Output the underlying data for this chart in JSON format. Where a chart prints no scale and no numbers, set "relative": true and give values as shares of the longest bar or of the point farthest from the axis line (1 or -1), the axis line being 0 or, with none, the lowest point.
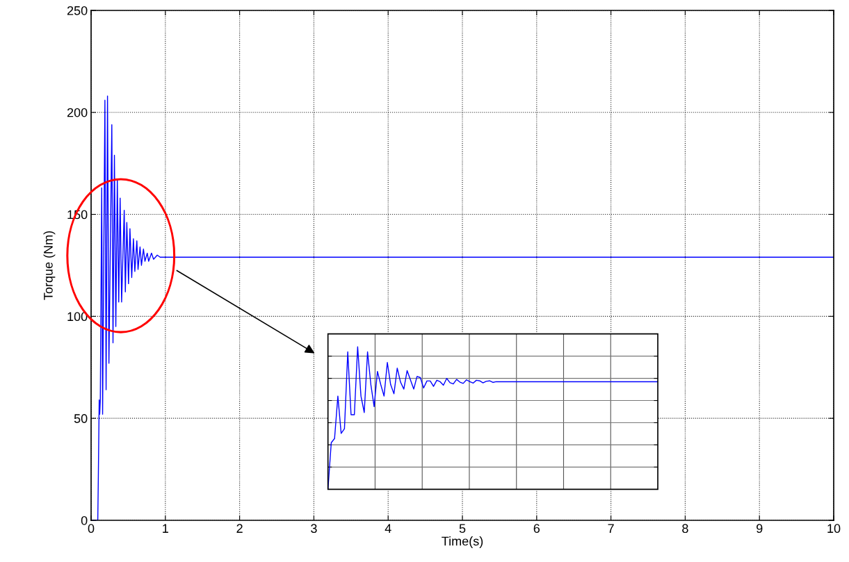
{
  "chart_data": [
    {
      "type": "line",
      "xlabel": "Time(s)",
      "ylabel": "Torque (Nm)",
      "x": [
        0,
        0.09,
        0.097,
        0.109,
        0.116,
        0.124,
        0.143,
        0.155,
        0.186,
        0.202,
        0.221,
        0.24,
        0.279,
        0.295,
        0.314,
        0.333,
        0.353,
        0.372,
        0.391,
        0.411,
        0.446,
        0.461,
        0.481,
        0.504,
        0.523,
        0.547,
        0.57,
        0.589,
        0.616,
        0.632,
        0.659,
        0.678,
        0.705,
        0.725,
        0.756,
        0.775,
        0.814,
        0.841,
        0.891,
        0.93,
        1.2,
        10
      ],
      "series": [
        {
          "color": "#0000ff",
          "values": [
            0,
            0,
            20,
            59,
            52,
            59,
            163,
            52,
            206,
            64,
            208,
            77,
            194,
            87,
            179,
            95,
            167,
            107,
            158,
            107,
            152,
            112,
            146,
            116,
            143,
            119,
            138,
            122,
            137,
            123,
            134,
            125,
            133,
            127,
            131,
            127,
            131,
            128,
            130,
            129,
            129,
            129
          ]
        }
      ],
      "xlim": [
        0,
        10
      ],
      "ylim": [
        0,
        250
      ],
      "xticks": [
        0,
        1,
        2,
        3,
        4,
        5,
        6,
        7,
        8,
        9,
        10
      ],
      "yticks": [
        0,
        50,
        100,
        150,
        200,
        250
      ],
      "grid": true
    },
    {
      "type": "line",
      "relative": true,
      "grid": true,
      "tick_labels": false,
      "categories": [
        null,
        null,
        null,
        null,
        null,
        null,
        null,
        null,
        null,
        null,
        null,
        null,
        null,
        null,
        null,
        null,
        null,
        null,
        null,
        null,
        null,
        null,
        null,
        null,
        null,
        null,
        null,
        null,
        null,
        null,
        null,
        null,
        null,
        null,
        null,
        null,
        null,
        null,
        null,
        null,
        null,
        null,
        null,
        null,
        null,
        null,
        null,
        null,
        null,
        null,
        null,
        null,
        null,
        null,
        null,
        null,
        null,
        null,
        null,
        null,
        null,
        null,
        null,
        null,
        null,
        null,
        null,
        null,
        null,
        null,
        null,
        null,
        null,
        null,
        null,
        null,
        null,
        null,
        null,
        null,
        null,
        null,
        null,
        null,
        null,
        null,
        null,
        null,
        null,
        null,
        null,
        null,
        null,
        null,
        null,
        null,
        null,
        null,
        null,
        null,
        null
      ],
      "series": [
        {
          "color": "#0000ff",
          "values": [
            0,
            0.327,
            0.356,
            0.654,
            0.392,
            0.425,
            0.964,
            0.523,
            0.523,
            1,
            0.654,
            0.539,
            0.964,
            0.735,
            0.58,
            0.827,
            0.735,
            0.654,
            0.89,
            0.735,
            0.67,
            0.85,
            0.752,
            0.703,
            0.833,
            0.768,
            0.703,
            0.792,
            0.784,
            0.711,
            0.76,
            0.76,
            0.722,
            0.765,
            0.755,
            0.73,
            0.778,
            0.748,
            0.739,
            0.771,
            0.752,
            0.743,
            0.768,
            0.755,
            0.745,
            0.765,
            0.761,
            0.747,
            0.758,
            0.761,
            0.75,
            0.755,
            0.755,
            0.755,
            0.755,
            0.755,
            0.755,
            0.755,
            0.755,
            0.755,
            0.755,
            0.755,
            0.755,
            0.755,
            0.755,
            0.755,
            0.755,
            0.755,
            0.755,
            0.755,
            0.755,
            0.755,
            0.755,
            0.755,
            0.755,
            0.755,
            0.755,
            0.755,
            0.755,
            0.755,
            0.755,
            0.755,
            0.755,
            0.755,
            0.755,
            0.755,
            0.755,
            0.755,
            0.755,
            0.755,
            0.755,
            0.755,
            0.755,
            0.755,
            0.755,
            0.755,
            0.755,
            0.755,
            0.755,
            0.755,
            0.755
          ]
        }
      ]
    }
  ]
}
